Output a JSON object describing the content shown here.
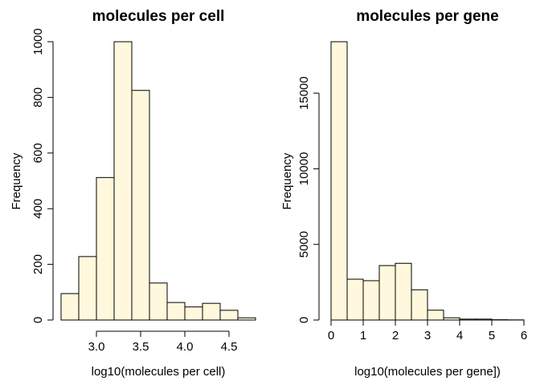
{
  "colors": {
    "bar_fill": "#FFF8DC",
    "bar_stroke": "#000000",
    "axis": "#000000"
  },
  "chart_data": [
    {
      "type": "bar",
      "title": "molecules per cell",
      "xlabel": "log10(molecules per cell)",
      "ylabel": "Frequency",
      "bin_edges": [
        2.6,
        2.8,
        3.0,
        3.2,
        3.4,
        3.6,
        3.8,
        4.0,
        4.2,
        4.4,
        4.6,
        4.8
      ],
      "values": [
        95,
        228,
        512,
        1000,
        825,
        133,
        63,
        47,
        60,
        35,
        8
      ],
      "xlim": [
        2.6,
        4.8
      ],
      "ylim": [
        0,
        1000
      ],
      "xticks": [
        3.0,
        3.5,
        4.0,
        4.5
      ],
      "xtick_labels": [
        "3.0",
        "3.5",
        "4.0",
        "4.5"
      ],
      "yticks": [
        0,
        200,
        400,
        600,
        800,
        1000
      ],
      "ytick_labels": [
        "0",
        "200",
        "400",
        "600",
        "800",
        "1000"
      ],
      "grid": false
    },
    {
      "type": "bar",
      "title": "molecules per gene",
      "xlabel": "log10(molecules per gene])",
      "ylabel": "Frequency",
      "bin_edges": [
        0,
        0.5,
        1,
        1.5,
        2,
        2.5,
        3,
        3.5,
        4,
        4.5,
        5,
        5.5,
        6
      ],
      "values": [
        18400,
        2700,
        2600,
        3600,
        3750,
        2000,
        650,
        150,
        60,
        60,
        20,
        10
      ],
      "xlim": [
        0,
        6
      ],
      "ylim": [
        0,
        18400
      ],
      "xticks": [
        0,
        1,
        2,
        3,
        4,
        5,
        6
      ],
      "xtick_labels": [
        "0",
        "1",
        "2",
        "3",
        "4",
        "5",
        "6"
      ],
      "yticks": [
        0,
        5000,
        10000,
        15000
      ],
      "ytick_labels": [
        "0",
        "5000",
        "10000",
        "15000"
      ],
      "grid": false
    }
  ]
}
